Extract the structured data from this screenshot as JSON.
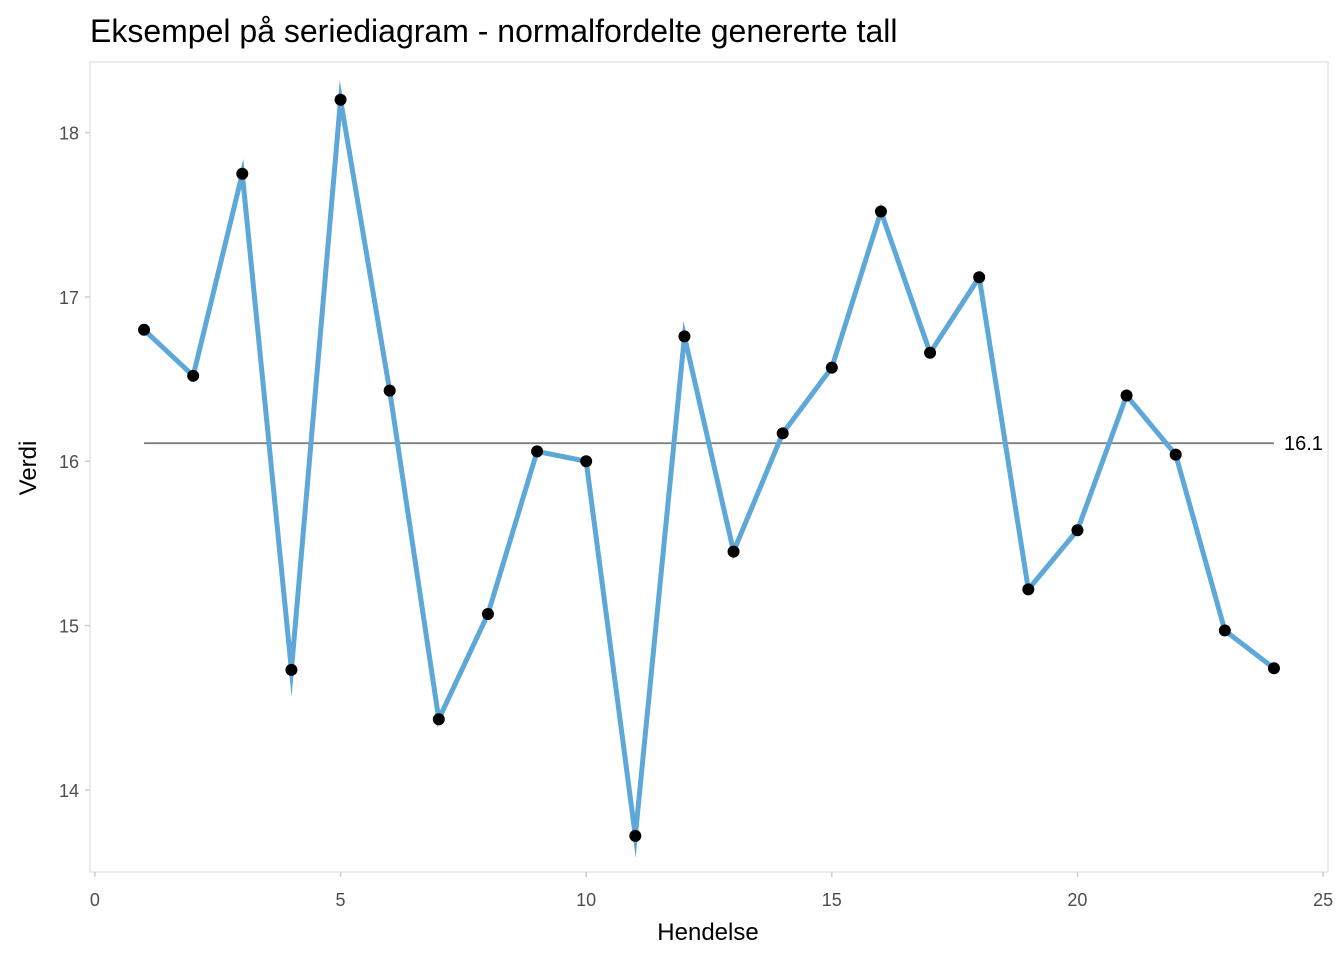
{
  "chart_data": {
    "type": "line",
    "title": "Eksempel på seriediagram - normalfordelte genererte tall",
    "xlabel": "Hendelse",
    "ylabel": "Verdi",
    "xlim": [
      -0.1,
      25.1
    ],
    "ylim": [
      13.5,
      18.43
    ],
    "x_ticks": [
      0,
      5,
      10,
      15,
      20,
      25
    ],
    "x_tick_labels": [
      "0",
      "5",
      "10",
      "15",
      "20",
      "25"
    ],
    "y_ticks": [
      14,
      15,
      16,
      17,
      18
    ],
    "y_tick_labels": [
      "14",
      "15",
      "16",
      "17",
      "18"
    ],
    "grid": false,
    "legend": "none",
    "series": [
      {
        "x": [
          1,
          2,
          3,
          4,
          5,
          6,
          7,
          8,
          9,
          10,
          11,
          12,
          13,
          14,
          15,
          16,
          17,
          18,
          19,
          20,
          21,
          22,
          23,
          24
        ],
        "values": [
          16.8,
          16.52,
          17.75,
          14.73,
          18.2,
          16.43,
          14.43,
          15.07,
          16.06,
          16.0,
          13.72,
          16.76,
          15.45,
          16.17,
          16.57,
          17.52,
          16.66,
          17.12,
          15.22,
          15.58,
          16.4,
          16.04,
          14.97,
          14.74
        ],
        "line_color": "#5da7d9",
        "point_color": "#000000"
      }
    ],
    "reference_line": {
      "value": 16.11,
      "label": "16.1",
      "x_start": 1,
      "x_end": 24,
      "color": "#808080"
    },
    "panel_border_color": "#e6e6e6"
  }
}
